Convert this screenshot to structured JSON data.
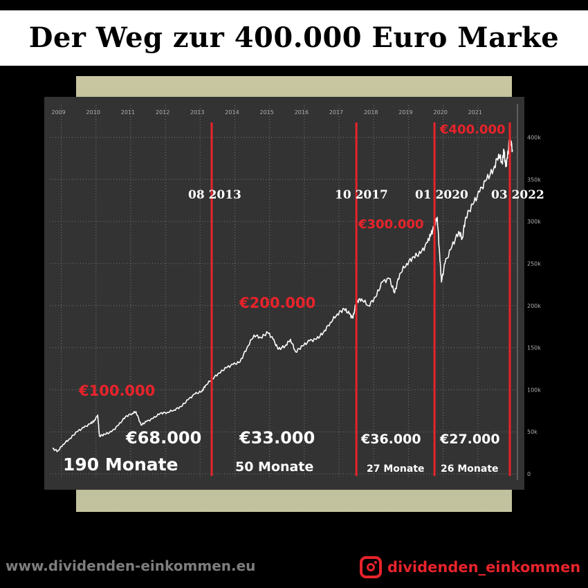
{
  "title": "Der Weg zur 400.000 Euro Marke",
  "footer": {
    "website": "www.dividenden-einkommen.eu",
    "instagram_handle": "dividenden_einkommen",
    "instagram_icon": "instagram-icon"
  },
  "colors": {
    "milestone_red": "#e8232b",
    "panel": "#333333",
    "line": "#ffffff"
  },
  "chart_data": {
    "type": "line",
    "x_tick_labels": [
      "2009",
      "2010",
      "2011",
      "2012",
      "2013",
      "2014",
      "2015",
      "2016",
      "2017",
      "2018",
      "2019",
      "2020",
      "2021"
    ],
    "x_range": [
      2009.0,
      2022.25
    ],
    "y_tick_labels": [
      "0",
      "50k",
      "100k",
      "150k",
      "200k",
      "250k",
      "300k",
      "350k",
      "400k"
    ],
    "y_ticks": [
      0,
      50000,
      100000,
      150000,
      200000,
      250000,
      300000,
      350000,
      400000
    ],
    "ylim": [
      0,
      400000
    ],
    "grid": true,
    "series": [
      {
        "points": [
          [
            2009.0,
            30000
          ],
          [
            2009.15,
            27000
          ],
          [
            2009.3,
            35000
          ],
          [
            2009.5,
            42000
          ],
          [
            2009.7,
            50000
          ],
          [
            2009.9,
            55000
          ],
          [
            2010.1,
            60000
          ],
          [
            2010.2,
            63000
          ],
          [
            2010.3,
            70000
          ],
          [
            2010.35,
            45000
          ],
          [
            2010.5,
            47000
          ],
          [
            2010.7,
            50000
          ],
          [
            2010.9,
            58000
          ],
          [
            2011.1,
            68000
          ],
          [
            2011.3,
            72000
          ],
          [
            2011.4,
            74000
          ],
          [
            2011.55,
            58000
          ],
          [
            2011.7,
            62000
          ],
          [
            2011.9,
            66000
          ],
          [
            2012.1,
            72000
          ],
          [
            2012.3,
            73000
          ],
          [
            2012.5,
            76000
          ],
          [
            2012.7,
            80000
          ],
          [
            2012.9,
            88000
          ],
          [
            2013.1,
            95000
          ],
          [
            2013.3,
            98000
          ],
          [
            2013.4,
            105000
          ],
          [
            2013.6,
            113000
          ],
          [
            2013.8,
            120000
          ],
          [
            2014.0,
            126000
          ],
          [
            2014.2,
            130000
          ],
          [
            2014.4,
            133000
          ],
          [
            2014.6,
            150000
          ],
          [
            2014.8,
            165000
          ],
          [
            2015.0,
            162000
          ],
          [
            2015.2,
            168000
          ],
          [
            2015.35,
            160000
          ],
          [
            2015.5,
            148000
          ],
          [
            2015.7,
            152000
          ],
          [
            2015.85,
            160000
          ],
          [
            2016.0,
            145000
          ],
          [
            2016.2,
            152000
          ],
          [
            2016.4,
            158000
          ],
          [
            2016.6,
            160000
          ],
          [
            2016.8,
            168000
          ],
          [
            2017.0,
            180000
          ],
          [
            2017.2,
            190000
          ],
          [
            2017.4,
            196000
          ],
          [
            2017.55,
            190000
          ],
          [
            2017.65,
            185000
          ],
          [
            2017.75,
            205000
          ],
          [
            2017.9,
            208000
          ],
          [
            2018.1,
            200000
          ],
          [
            2018.3,
            210000
          ],
          [
            2018.5,
            228000
          ],
          [
            2018.7,
            232000
          ],
          [
            2018.85,
            215000
          ],
          [
            2019.0,
            238000
          ],
          [
            2019.2,
            250000
          ],
          [
            2019.4,
            258000
          ],
          [
            2019.6,
            262000
          ],
          [
            2019.8,
            275000
          ],
          [
            2019.9,
            285000
          ],
          [
            2020.0,
            295000
          ],
          [
            2020.08,
            305000
          ],
          [
            2020.15,
            260000
          ],
          [
            2020.2,
            228000
          ],
          [
            2020.3,
            250000
          ],
          [
            2020.5,
            270000
          ],
          [
            2020.7,
            288000
          ],
          [
            2020.8,
            280000
          ],
          [
            2020.9,
            305000
          ],
          [
            2021.1,
            320000
          ],
          [
            2021.3,
            335000
          ],
          [
            2021.5,
            350000
          ],
          [
            2021.7,
            362000
          ],
          [
            2021.85,
            380000
          ],
          [
            2021.95,
            370000
          ],
          [
            2022.0,
            385000
          ],
          [
            2022.05,
            365000
          ],
          [
            2022.1,
            375000
          ],
          [
            2022.17,
            400000
          ],
          [
            2022.25,
            385000
          ]
        ]
      }
    ],
    "milestones": [
      {
        "x": 2013.583,
        "date_label": "08 2013",
        "level_label": "€200.000",
        "gain_label": "€33.000",
        "months_label": "50 Monate"
      },
      {
        "x": 2017.75,
        "date_label": "10 2017",
        "level_label": "€300.000",
        "gain_label": "€36.000",
        "months_label": "27 Monate"
      },
      {
        "x": 2020.0,
        "date_label": "01 2020",
        "level_label": "€400.000",
        "gain_label": "€27.000",
        "months_label": "26 Monate"
      },
      {
        "x": 2022.17,
        "date_label": "03 2022"
      }
    ],
    "first_period": {
      "level_label": "€100.000",
      "gain_label": "€68.000",
      "months_label": "190 Monate"
    }
  }
}
